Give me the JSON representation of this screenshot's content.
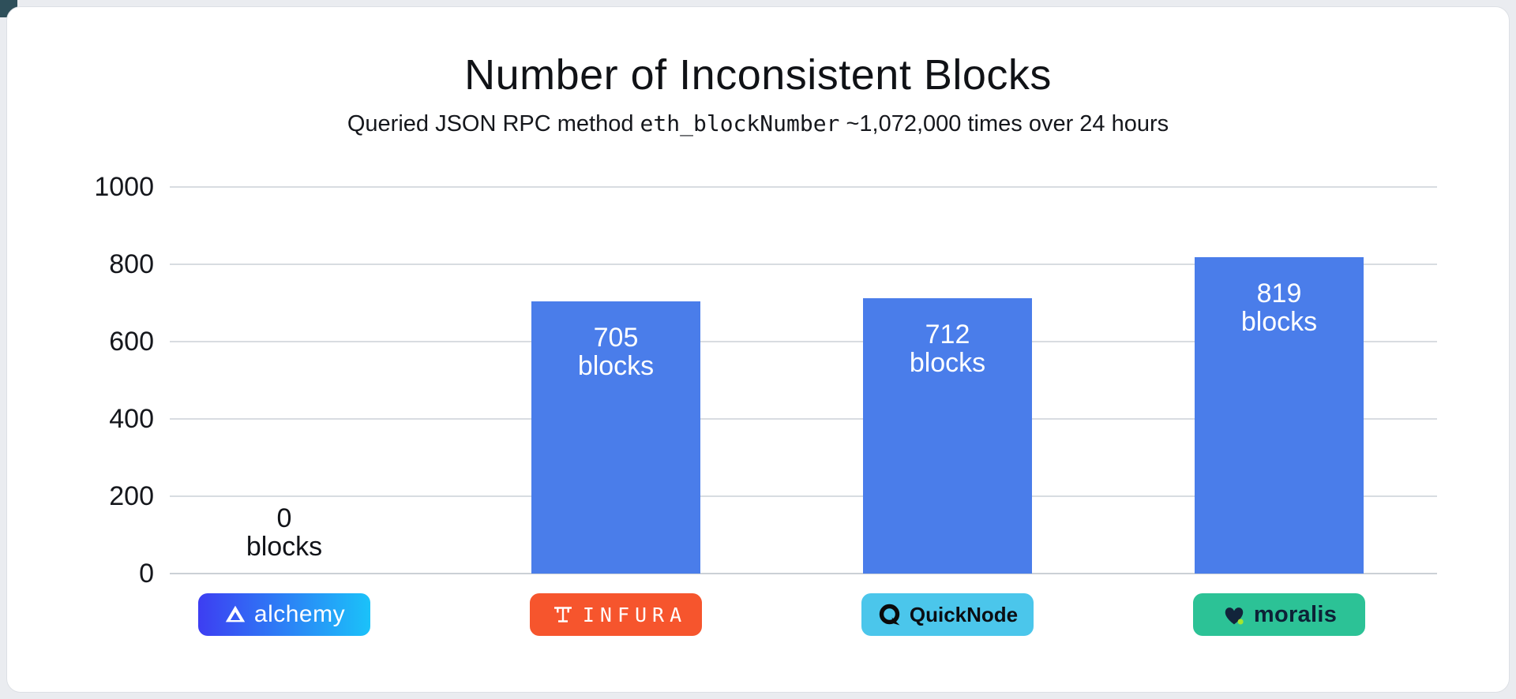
{
  "header": {
    "title": "Number of Inconsistent Blocks",
    "subtitle_prefix": "Queried JSON RPC method ",
    "subtitle_code": "eth_blockNumber",
    "subtitle_suffix": " ~1,072,000 times over 24 hours"
  },
  "chart_data": {
    "type": "bar",
    "title": "Number of Inconsistent Blocks",
    "subtitle": "Queried JSON RPC method eth_blockNumber ~1,072,000 times over 24 hours",
    "categories": [
      "Alchemy",
      "Infura",
      "QuickNode",
      "Moralis"
    ],
    "values": [
      0,
      705,
      712,
      819
    ],
    "unit": "blocks",
    "xlabel": "",
    "ylabel": "",
    "ylim": [
      0,
      1000
    ],
    "yticks": [
      0,
      200,
      400,
      600,
      800,
      1000
    ],
    "grid": true,
    "legend": false,
    "bar_color": "#4A7DEA",
    "bar_label_color": "#FFFFFF",
    "zero_label_color": "#111318",
    "providers": [
      {
        "name": "Alchemy",
        "value": 0,
        "value_text": "0",
        "unit_text": "blocks",
        "icon": "alchemy-logo-icon",
        "badge": {
          "label": "alchemy",
          "bg_start": "#3D3EF2",
          "bg_end": "#1BC2F9",
          "text_color": "#FFFFFF"
        }
      },
      {
        "name": "Infura",
        "value": 705,
        "value_text": "705",
        "unit_text": "blocks",
        "icon": "infura-logo-icon",
        "badge": {
          "label": "INFURA",
          "bg_start": "#F6552D",
          "bg_end": "#F6552D",
          "text_color": "#FFFFFF"
        }
      },
      {
        "name": "QuickNode",
        "value": 712,
        "value_text": "712",
        "unit_text": "blocks",
        "icon": "quicknode-logo-icon",
        "badge": {
          "label": "QuickNode",
          "bg_start": "#4BC6EB",
          "bg_end": "#4BC6EB",
          "text_color": "#0B0E13"
        }
      },
      {
        "name": "Moralis",
        "value": 819,
        "value_text": "819",
        "unit_text": "blocks",
        "icon": "moralis-logo-icon",
        "badge": {
          "label": "moralis",
          "bg_start": "#2CC296",
          "bg_end": "#2CC296",
          "text_color": "#0D2136",
          "dot_color": "#A5E52F"
        }
      }
    ]
  },
  "colors": {
    "page_background": "#EAECF0",
    "card_background": "#FFFFFF",
    "grid_line": "#D8DCE1",
    "axis_line": "#CBD0D6",
    "text": "#15171C"
  }
}
